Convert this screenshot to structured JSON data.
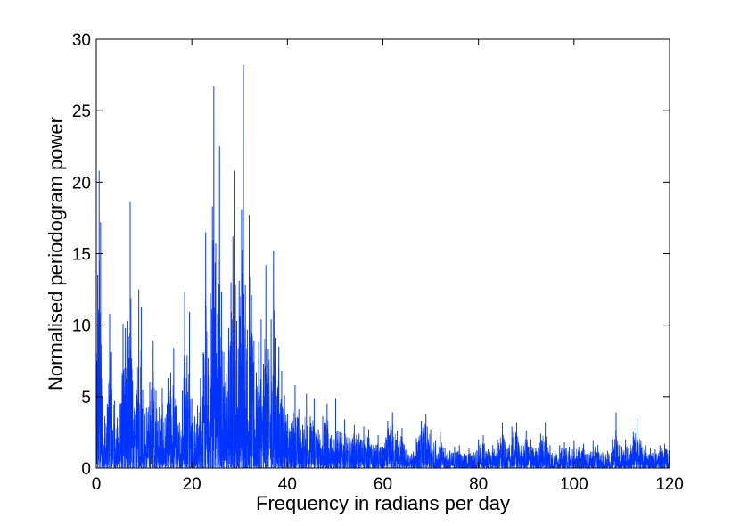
{
  "chart_data": {
    "type": "line",
    "title": "",
    "xlabel": "Frequency in radians per day",
    "ylabel": "Normalised periodogram power",
    "xlim": [
      0,
      120
    ],
    "ylim": [
      0,
      30
    ],
    "x_ticks": [
      0,
      20,
      40,
      60,
      80,
      100,
      120
    ],
    "y_ticks": [
      0,
      5,
      10,
      15,
      20,
      25,
      30
    ],
    "x_tick_labels": [
      "0",
      "20",
      "40",
      "60",
      "80",
      "100",
      "120"
    ],
    "y_tick_labels": [
      "0",
      "5",
      "10",
      "15",
      "20",
      "25",
      "30"
    ],
    "grid": false,
    "legend": "none",
    "series": [
      {
        "color": "#0033ff",
        "peaks": [
          [
            0.0,
            8.2
          ],
          [
            0.3,
            13.5
          ],
          [
            0.6,
            20.8
          ],
          [
            0.9,
            17.2
          ],
          [
            1.3,
            5.0
          ],
          [
            1.8,
            3.6
          ],
          [
            2.3,
            4.5
          ],
          [
            2.8,
            10.8
          ],
          [
            3.2,
            8.1
          ],
          [
            3.8,
            4.7
          ],
          [
            4.4,
            3.5
          ],
          [
            5.0,
            4.5
          ],
          [
            5.6,
            10.1
          ],
          [
            6.1,
            9.8
          ],
          [
            6.6,
            10.3
          ],
          [
            7.1,
            18.6
          ],
          [
            7.6,
            6.1
          ],
          [
            8.3,
            4.0
          ],
          [
            8.9,
            12.5
          ],
          [
            9.4,
            11.3
          ],
          [
            9.9,
            5.5
          ],
          [
            10.5,
            4.2
          ],
          [
            11.2,
            6.0
          ],
          [
            11.9,
            8.9
          ],
          [
            12.5,
            5.4
          ],
          [
            13.2,
            4.3
          ],
          [
            13.8,
            5.6
          ],
          [
            14.4,
            3.5
          ],
          [
            15.0,
            6.3
          ],
          [
            15.6,
            6.7
          ],
          [
            16.2,
            8.4
          ],
          [
            16.8,
            4.4
          ],
          [
            17.4,
            3.2
          ],
          [
            18.0,
            5.4
          ],
          [
            18.5,
            12.3
          ],
          [
            19.0,
            7.9
          ],
          [
            19.5,
            10.9
          ],
          [
            20.0,
            4.9
          ],
          [
            20.6,
            3.6
          ],
          [
            21.2,
            4.4
          ],
          [
            21.8,
            6.3
          ],
          [
            22.4,
            8.1
          ],
          [
            22.9,
            16.5
          ],
          [
            23.4,
            7.7
          ],
          [
            23.9,
            12.2
          ],
          [
            24.3,
            18.3
          ],
          [
            24.6,
            26.7
          ],
          [
            25.0,
            15.7
          ],
          [
            25.4,
            10.8
          ],
          [
            25.8,
            22.5
          ],
          [
            26.2,
            12.3
          ],
          [
            26.7,
            8.1
          ],
          [
            27.2,
            6.6
          ],
          [
            27.7,
            9.8
          ],
          [
            28.2,
            13.0
          ],
          [
            28.6,
            16.2
          ],
          [
            29.0,
            20.8
          ],
          [
            29.4,
            10.3
          ],
          [
            29.9,
            13.1
          ],
          [
            30.4,
            18.1
          ],
          [
            30.8,
            28.2
          ],
          [
            31.2,
            12.8
          ],
          [
            31.6,
            9.7
          ],
          [
            32.0,
            17.7
          ],
          [
            32.5,
            12.1
          ],
          [
            33.0,
            8.9
          ],
          [
            33.5,
            6.7
          ],
          [
            34.0,
            8.8
          ],
          [
            34.5,
            10.4
          ],
          [
            35.0,
            7.3
          ],
          [
            35.5,
            14.2
          ],
          [
            36.0,
            8.3
          ],
          [
            36.6,
            10.4
          ],
          [
            37.1,
            15.2
          ],
          [
            37.6,
            9.1
          ],
          [
            38.2,
            8.5
          ],
          [
            38.8,
            6.8
          ],
          [
            39.4,
            5.1
          ],
          [
            40.0,
            3.8
          ],
          [
            40.8,
            3.1
          ],
          [
            41.6,
            5.8
          ],
          [
            42.4,
            4.1
          ],
          [
            43.2,
            3.0
          ],
          [
            44.0,
            5.2
          ],
          [
            44.8,
            3.6
          ],
          [
            45.6,
            4.9
          ],
          [
            46.5,
            2.7
          ],
          [
            47.4,
            3.6
          ],
          [
            48.3,
            4.5
          ],
          [
            49.2,
            2.3
          ],
          [
            50.1,
            4.9
          ],
          [
            51.0,
            2.5
          ],
          [
            52.0,
            3.4
          ],
          [
            53.0,
            2.1
          ],
          [
            54.0,
            3.0
          ],
          [
            55.0,
            2.4
          ],
          [
            56.0,
            2.9
          ],
          [
            57.0,
            2.7
          ],
          [
            58.0,
            1.6
          ],
          [
            59.0,
            2.3
          ],
          [
            60.0,
            1.5
          ],
          [
            61.0,
            3.3
          ],
          [
            62.0,
            3.9
          ],
          [
            63.0,
            2.6
          ],
          [
            64.0,
            2.8
          ],
          [
            65.0,
            1.3
          ],
          [
            66.0,
            1.0
          ],
          [
            67.0,
            2.1
          ],
          [
            68.0,
            3.3
          ],
          [
            69.0,
            3.8
          ],
          [
            70.0,
            2.7
          ],
          [
            71.0,
            1.9
          ],
          [
            72.0,
            2.5
          ],
          [
            73.0,
            1.4
          ],
          [
            74.0,
            1.2
          ],
          [
            75.0,
            1.5
          ],
          [
            76.0,
            1.6
          ],
          [
            77.0,
            1.0
          ],
          [
            78.0,
            1.4
          ],
          [
            79.0,
            1.1
          ],
          [
            80.0,
            2.0
          ],
          [
            81.0,
            2.3
          ],
          [
            82.0,
            1.3
          ],
          [
            83.0,
            1.6
          ],
          [
            84.0,
            2.0
          ],
          [
            85.0,
            3.2
          ],
          [
            86.0,
            1.3
          ],
          [
            87.0,
            2.9
          ],
          [
            88.0,
            3.2
          ],
          [
            89.0,
            1.6
          ],
          [
            90.0,
            2.6
          ],
          [
            91.0,
            2.0
          ],
          [
            92.0,
            1.4
          ],
          [
            93.0,
            2.4
          ],
          [
            94.0,
            3.2
          ],
          [
            95.0,
            1.6
          ],
          [
            96.0,
            1.2
          ],
          [
            97.0,
            1.6
          ],
          [
            98.0,
            1.8
          ],
          [
            99.0,
            1.5
          ],
          [
            100.0,
            1.9
          ],
          [
            101.0,
            1.5
          ],
          [
            102.0,
            1.7
          ],
          [
            103.0,
            1.0
          ],
          [
            104.0,
            1.9
          ],
          [
            105.0,
            1.6
          ],
          [
            106.0,
            1.1
          ],
          [
            107.0,
            1.2
          ],
          [
            108.0,
            2.0
          ],
          [
            108.8,
            3.9
          ],
          [
            109.5,
            1.6
          ],
          [
            110.0,
            1.5
          ],
          [
            110.8,
            2.0
          ],
          [
            111.5,
            1.8
          ],
          [
            112.4,
            2.5
          ],
          [
            113.2,
            3.5
          ],
          [
            114.0,
            1.9
          ],
          [
            115.0,
            1.6
          ],
          [
            116.0,
            1.4
          ],
          [
            117.0,
            1.3
          ],
          [
            118.0,
            1.6
          ],
          [
            119.0,
            1.7
          ],
          [
            120.0,
            1.5
          ]
        ]
      }
    ]
  }
}
